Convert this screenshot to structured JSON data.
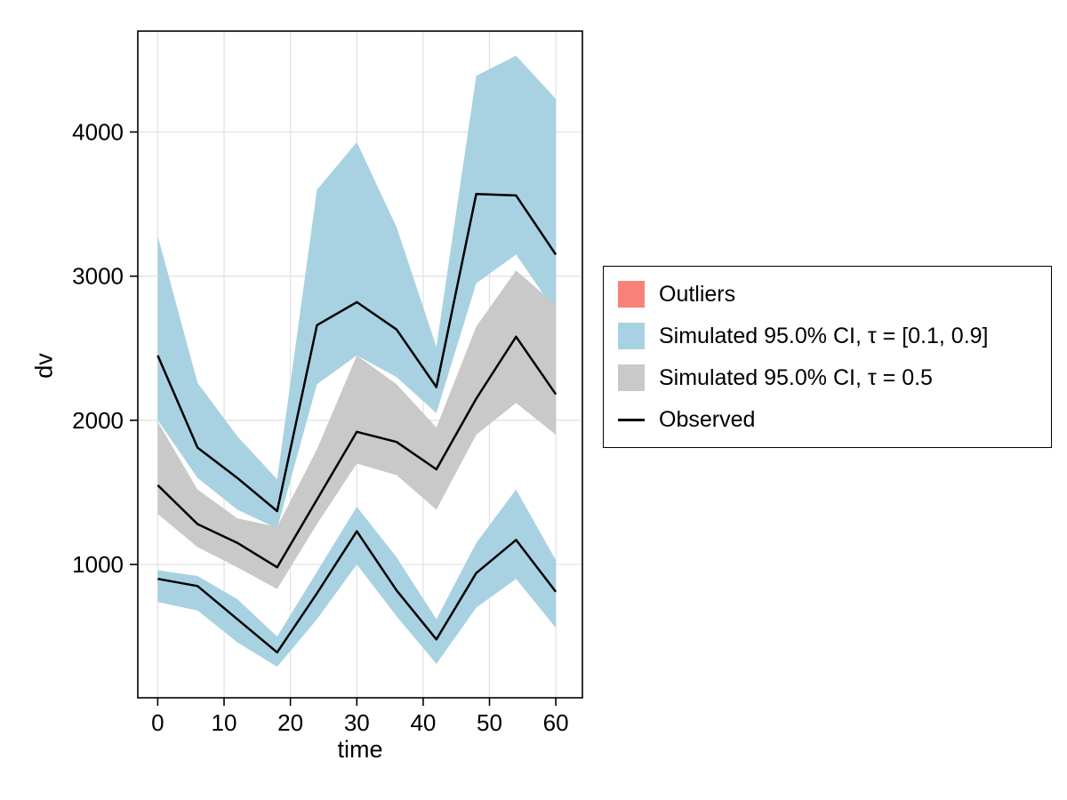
{
  "figure": {
    "background": "#ffffff",
    "grid_color": "#e3e3e3",
    "frame_color": "#000000",
    "observed_color": "#000000",
    "blue_band_color": "#A8D2E2",
    "gray_band_color": "#C9C9C9",
    "outlier_color": "#F88279"
  },
  "legend": {
    "items": [
      {
        "label": "Outliers",
        "type": "box",
        "color": "#F88279"
      },
      {
        "label": "Simulated 95.0% CI, τ = [0.1, 0.9]",
        "type": "box",
        "color": "#A8D2E2"
      },
      {
        "label": "Simulated 95.0% CI, τ = 0.5",
        "type": "box",
        "color": "#C9C9C9"
      },
      {
        "label": "Observed",
        "type": "line",
        "color": "#000000"
      }
    ]
  },
  "chart_data": {
    "type": "line",
    "title": "",
    "xlabel": "time",
    "ylabel": "dv",
    "legend_position": "right",
    "grid": true,
    "xticks": [
      0,
      10,
      20,
      30,
      40,
      50,
      60
    ],
    "yticks": [
      1000,
      2000,
      3000,
      4000
    ],
    "xlim": [
      -3,
      64
    ],
    "ylim": [
      75,
      4700
    ],
    "x": [
      0,
      6,
      12,
      18,
      24,
      30,
      36,
      42,
      48,
      54,
      60
    ],
    "series": [
      {
        "name": "observed_upper_quantile",
        "values": [
          2450,
          1810,
          1600,
          1370,
          2660,
          2820,
          2630,
          2230,
          3570,
          3560,
          3150
        ]
      },
      {
        "name": "observed_median",
        "values": [
          1550,
          1280,
          1150,
          980,
          1450,
          1920,
          1850,
          1660,
          2150,
          2580,
          2180
        ]
      },
      {
        "name": "observed_lower_quantile",
        "values": [
          900,
          850,
          620,
          390,
          800,
          1230,
          820,
          480,
          940,
          1170,
          810
        ]
      }
    ],
    "bands": [
      {
        "name": "simulated_ci_upper_quantile",
        "color": "#A8D2E2",
        "hi": [
          3280,
          2260,
          1890,
          1590,
          3600,
          3930,
          3340,
          2510,
          4390,
          4530,
          4230
        ],
        "lo": [
          2000,
          1600,
          1380,
          1250,
          2250,
          2450,
          2300,
          2050,
          2950,
          3150,
          2750
        ]
      },
      {
        "name": "simulated_ci_median",
        "color": "#C9C9C9",
        "hi": [
          1990,
          1520,
          1320,
          1260,
          1800,
          2450,
          2250,
          1950,
          2650,
          3040,
          2800
        ],
        "lo": [
          1350,
          1120,
          980,
          830,
          1280,
          1700,
          1620,
          1380,
          1900,
          2120,
          1900
        ]
      },
      {
        "name": "simulated_ci_lower_quantile",
        "color": "#A8D2E2",
        "hi": [
          960,
          920,
          760,
          500,
          950,
          1400,
          1050,
          620,
          1150,
          1520,
          1030
        ],
        "lo": [
          740,
          680,
          460,
          290,
          620,
          1000,
          640,
          310,
          700,
          900,
          560
        ]
      }
    ]
  }
}
